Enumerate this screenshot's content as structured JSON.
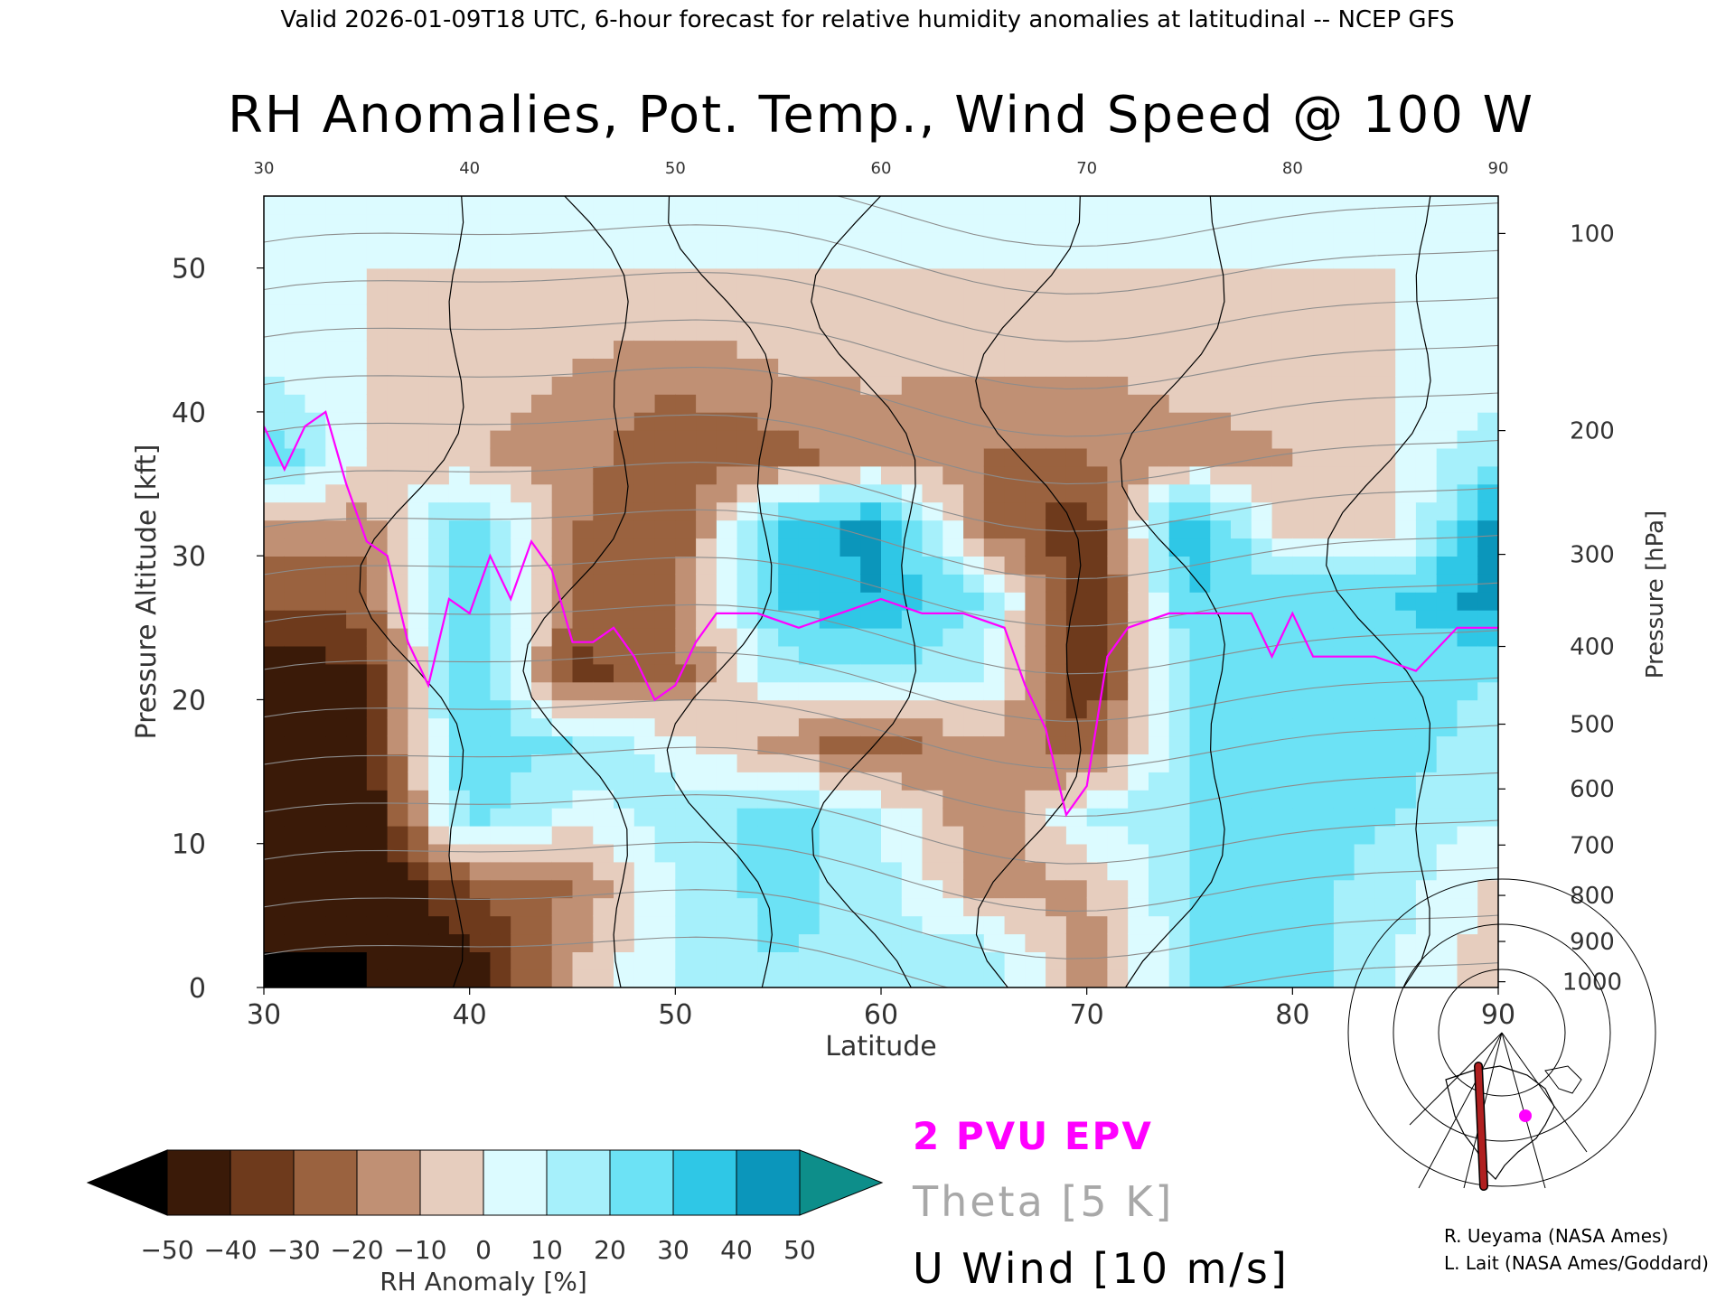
{
  "header": "Valid 2026-01-09T18 UTC, 6-hour forecast for relative humidity anomalies at latitudinal -- NCEP GFS",
  "chart_data": {
    "type": "heatmap",
    "title": "RH Anomalies, Pot. Temp., Wind Speed @ 100 W",
    "xlabel": "Latitude",
    "ylabel": "Pressure Altitude [kft]",
    "y2label": "Pressure [hPa]",
    "xlim": [
      30,
      90
    ],
    "ylim": [
      0,
      55
    ],
    "xticks": [
      "30",
      "40",
      "50",
      "60",
      "70",
      "80",
      "90"
    ],
    "yticks": [
      "0",
      "10",
      "20",
      "30",
      "40",
      "50"
    ],
    "yticks_values": [
      0,
      10,
      20,
      30,
      40,
      50
    ],
    "pressure_ticks": [
      {
        "label": "100",
        "kft": 52.4
      },
      {
        "label": "200",
        "kft": 38.7
      },
      {
        "label": "300",
        "kft": 30.1
      },
      {
        "label": "400",
        "kft": 23.7
      },
      {
        "label": "500",
        "kft": 18.3
      },
      {
        "label": "600",
        "kft": 13.8
      },
      {
        "label": "700",
        "kft": 9.9
      },
      {
        "label": "800",
        "kft": 6.4
      },
      {
        "label": "900",
        "kft": 3.2
      },
      {
        "label": "1000",
        "kft": 0.4
      }
    ],
    "rh_anomaly_field": {
      "lat": [
        30,
        35,
        40,
        45,
        50,
        55,
        60,
        65,
        70,
        75,
        80,
        85,
        90
      ],
      "kft": [
        2,
        7,
        12,
        17,
        22,
        27,
        32,
        37,
        43,
        50
      ],
      "values_percent": [
        [
          -50,
          -50,
          -45,
          -10,
          10,
          20,
          15,
          20,
          -20,
          20,
          25,
          10,
          -5
        ],
        [
          -45,
          -50,
          -30,
          -20,
          10,
          25,
          15,
          -15,
          -10,
          20,
          25,
          15,
          -5
        ],
        [
          -45,
          -50,
          25,
          5,
          15,
          25,
          10,
          -20,
          10,
          20,
          25,
          20,
          10
        ],
        [
          -50,
          -40,
          30,
          20,
          5,
          -15,
          -30,
          -10,
          -30,
          20,
          25,
          25,
          15
        ],
        [
          -50,
          -40,
          35,
          -35,
          -25,
          15,
          20,
          10,
          -40,
          20,
          20,
          25,
          20
        ],
        [
          -30,
          -25,
          35,
          -20,
          -20,
          30,
          40,
          20,
          -45,
          30,
          30,
          30,
          45
        ],
        [
          -10,
          -15,
          30,
          -20,
          -30,
          35,
          45,
          -20,
          -40,
          45,
          -10,
          -5,
          50
        ],
        [
          30,
          0,
          -10,
          -15,
          -30,
          -25,
          -15,
          -20,
          -20,
          -15,
          -10,
          0,
          20
        ],
        [
          10,
          0,
          -5,
          -10,
          -15,
          -10,
          -8,
          -10,
          -10,
          -5,
          -5,
          0,
          5
        ],
        [
          0,
          0,
          0,
          0,
          0,
          0,
          0,
          0,
          0,
          0,
          0,
          0,
          0
        ]
      ]
    },
    "epv_2pvu": {
      "name": "2 PVU EPV",
      "color": "#ff00ff",
      "lat": [
        30,
        31,
        32,
        33,
        34,
        35,
        36,
        37,
        38,
        39,
        40,
        41,
        42,
        43,
        44,
        45,
        46,
        47,
        48,
        49,
        50,
        51,
        52,
        54,
        56,
        58,
        60,
        62,
        64,
        66,
        67,
        68,
        69,
        70,
        71,
        72,
        74,
        76,
        78,
        79,
        80,
        81,
        82,
        84,
        86,
        88,
        90
      ],
      "kft": [
        39,
        36,
        39,
        40,
        35,
        31,
        30,
        24,
        21,
        27,
        26,
        30,
        27,
        31,
        29,
        24,
        24,
        25,
        23,
        20,
        21,
        24,
        26,
        26,
        25,
        26,
        27,
        26,
        26,
        25,
        21,
        18,
        12,
        14,
        23,
        25,
        26,
        26,
        26,
        23,
        26,
        23,
        23,
        23,
        22,
        25,
        25
      ]
    },
    "theta_levels": [
      260,
      270,
      280,
      290,
      300,
      310,
      320,
      330,
      340,
      350,
      360,
      370,
      380,
      390,
      400,
      410,
      420
    ],
    "legend": {
      "epv_label": "2 PVU EPV",
      "theta_label": "Theta [5 K]",
      "wind_label": "U Wind [10 m/s]"
    },
    "colorbar": {
      "label": "RH Anomaly [%]",
      "ticks": [
        "−50",
        "−40",
        "−30",
        "−20",
        "−10",
        "0",
        "10",
        "20",
        "30",
        "40",
        "50"
      ],
      "colors": [
        "#000000",
        "#3a1a08",
        "#6e3a1c",
        "#9a623f",
        "#c09074",
        "#e6cdbe",
        "#dcfbff",
        "#a6f0fb",
        "#6ce2f5",
        "#2fc7e6",
        "#0b96bb",
        "#0d8e8a"
      ]
    }
  },
  "credits": {
    "line1": "R. Ueyama (NASA Ames)",
    "line2": "L. Lait (NASA Ames/Goddard)"
  }
}
